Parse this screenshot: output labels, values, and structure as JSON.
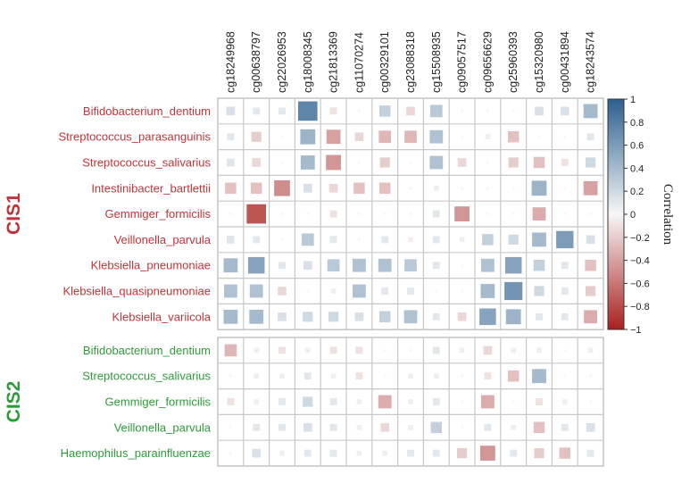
{
  "chart_data": {
    "type": "heatmap",
    "legend_title": "Correlation",
    "colorbar_ticks": [
      "1",
      "0.8",
      "0.6",
      "0.4",
      "0.2",
      "0",
      "−0.2",
      "−0.4",
      "−0.6",
      "−0.8",
      "−1"
    ],
    "colorbar_range": [
      -1,
      1
    ],
    "colors": {
      "positive": "#2c5f8e",
      "neutral": "#f7f7f7",
      "negative": "#a8201f",
      "group1": "#c0343a",
      "group2": "#2e9b3a",
      "grid": "#c8c8c8"
    },
    "columns": [
      "cg18249968",
      "cg00638797",
      "cg22026953",
      "cg18008345",
      "cg21813369",
      "cg11070274",
      "cg00329101",
      "cg23088318",
      "cg15508935",
      "cg09057517",
      "cg09656629",
      "cg25960393",
      "cg15320980",
      "cg00431894",
      "cg18243574"
    ],
    "groups": [
      {
        "label": "CIS1",
        "rows": [
          "Bifidobacterium_dentium",
          "Streptococcus_parasanguinis",
          "Streptococcus_salivarius",
          "Intestinibacter_bartlettii",
          "Gemmiger_formicilis",
          "Veillonella_parvula",
          "Klebsiella_pneumoniae",
          "Klebsiella_quasipneumoniae",
          "Klebsiella_variicola"
        ],
        "values": [
          [
            0.15,
            0.1,
            0.1,
            0.75,
            -0.1,
            0.0,
            0.25,
            -0.15,
            0.3,
            0.0,
            0.0,
            0.0,
            0.15,
            0.15,
            0.4
          ],
          [
            0.1,
            -0.2,
            0.0,
            0.45,
            -0.4,
            -0.15,
            -0.3,
            -0.3,
            0.35,
            0.0,
            -0.05,
            -0.25,
            0.0,
            0.0,
            0.1
          ],
          [
            0.12,
            -0.15,
            0.0,
            0.4,
            -0.45,
            0.0,
            -0.2,
            0.0,
            0.35,
            -0.15,
            0.0,
            -0.2,
            -0.25,
            -0.1,
            0.2
          ],
          [
            -0.25,
            -0.25,
            -0.5,
            0.15,
            -0.15,
            -0.25,
            -0.25,
            0.0,
            0.05,
            0.0,
            0.0,
            0.0,
            0.45,
            0.0,
            -0.4
          ],
          [
            0.0,
            -0.75,
            0.0,
            0.0,
            -0.1,
            0.0,
            0.0,
            0.0,
            0.1,
            -0.45,
            0.0,
            0.0,
            -0.35,
            0.0,
            0.0
          ],
          [
            0.12,
            0.1,
            0.0,
            0.3,
            0.1,
            0.0,
            0.1,
            -0.05,
            0.1,
            0.05,
            0.25,
            0.2,
            0.4,
            0.6,
            0.15
          ],
          [
            0.4,
            0.55,
            0.1,
            0.15,
            0.3,
            0.35,
            0.35,
            0.3,
            0.1,
            0.0,
            0.35,
            0.55,
            0.25,
            0.1,
            -0.25
          ],
          [
            0.35,
            0.35,
            -0.15,
            0.0,
            0.05,
            0.35,
            0.1,
            0.1,
            0.0,
            0.0,
            0.4,
            0.65,
            0.2,
            0.1,
            -0.2
          ],
          [
            0.4,
            0.4,
            0.15,
            0.2,
            0.2,
            0.15,
            0.25,
            0.35,
            0.1,
            -0.15,
            0.55,
            0.45,
            0.1,
            0.1,
            -0.35
          ]
        ]
      },
      {
        "label": "CIS2",
        "rows": [
          "Bifidobacterium_dentium",
          "Streptococcus_salivarius",
          "Gemmiger_formicilis",
          "Veillonella_parvula",
          "Haemophilus_parainfluenzae"
        ],
        "values": [
          [
            -0.3,
            0.05,
            -0.1,
            0.05,
            -0.1,
            -0.1,
            0.0,
            0.0,
            0.1,
            -0.05,
            -0.15,
            -0.05,
            0.05,
            0.0,
            0.05
          ],
          [
            0.0,
            0.05,
            0.05,
            0.1,
            0.05,
            -0.1,
            0.0,
            0.05,
            0.05,
            0.0,
            -0.1,
            -0.25,
            0.4,
            0.0,
            0.0
          ],
          [
            -0.1,
            0.05,
            0.1,
            0.2,
            0.1,
            0.05,
            -0.35,
            0.05,
            0.1,
            0.0,
            -0.35,
            0.0,
            -0.1,
            0.05,
            0.0
          ],
          [
            0.0,
            0.1,
            0.1,
            0.15,
            0.1,
            0.05,
            -0.15,
            0.05,
            0.25,
            0.0,
            0.1,
            0.05,
            -0.25,
            0.1,
            0.15
          ],
          [
            0.0,
            0.15,
            0.05,
            0.1,
            0.1,
            0.05,
            -0.05,
            0.1,
            0.1,
            -0.2,
            -0.45,
            0.1,
            -0.2,
            -0.25,
            0.1
          ]
        ]
      }
    ]
  }
}
